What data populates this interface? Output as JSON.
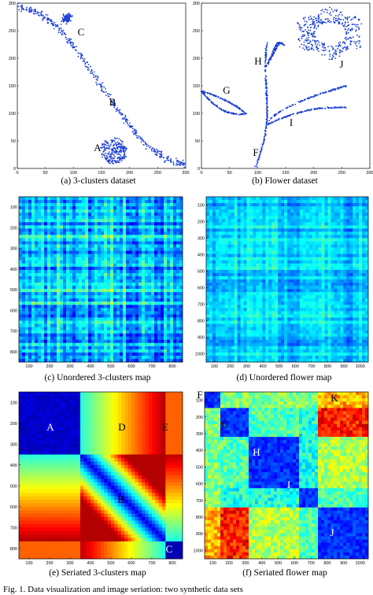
{
  "panels": {
    "a": {
      "caption": "(a) 3-clusters dataset",
      "xticks": [
        "0",
        "50",
        "100",
        "150",
        "200",
        "250",
        "300"
      ],
      "yticks": [
        "300",
        "250",
        "200",
        "150",
        "100",
        "50",
        "0"
      ],
      "labels": {
        "A": "A",
        "B": "B",
        "C": "C"
      }
    },
    "b": {
      "caption": "(b) Flower dataset",
      "xticks": [
        "0",
        "50",
        "100",
        "150",
        "200",
        "250",
        "300"
      ],
      "yticks": [
        "300",
        "250",
        "200",
        "150",
        "100",
        "50",
        "0"
      ],
      "labels": {
        "F": "F",
        "G": "G",
        "H": "H",
        "I": "I",
        "J": "J"
      }
    },
    "c": {
      "caption": "(c) Unordered 3-clusters map",
      "xticks": [
        "100",
        "200",
        "300",
        "400",
        "500",
        "600",
        "700",
        "800"
      ],
      "yticks": [
        "100",
        "200",
        "300",
        "400",
        "500",
        "600",
        "700",
        "800"
      ]
    },
    "d": {
      "caption": "(d) Unordered flower map",
      "xticks": [
        "100",
        "200",
        "300",
        "400",
        "500",
        "600",
        "700",
        "800",
        "900",
        "1000"
      ],
      "yticks": [
        "100",
        "200",
        "300",
        "400",
        "500",
        "600",
        "700",
        "800",
        "900",
        "1000"
      ]
    },
    "e": {
      "caption": "(e) Seriated 3-clusters map",
      "xticks": [
        "100",
        "200",
        "300",
        "400",
        "500",
        "600",
        "700",
        "800"
      ],
      "yticks": [
        "100",
        "200",
        "300",
        "400",
        "500",
        "600",
        "700",
        "800"
      ],
      "labels": {
        "A": "A",
        "B": "B",
        "C": "C",
        "D": "D",
        "E": "E"
      }
    },
    "f": {
      "caption": "(f) Seriated flower map",
      "xticks": [
        "100",
        "200",
        "300",
        "400",
        "500",
        "600",
        "700",
        "800",
        "900",
        "1000"
      ],
      "yticks": [
        "100",
        "200",
        "300",
        "400",
        "500",
        "600",
        "700",
        "800",
        "900",
        "1000"
      ],
      "labels": {
        "F": "F",
        "G": "G",
        "H": "H",
        "I": "I",
        "J": "J",
        "K": "K"
      }
    }
  },
  "figure_caption": "Fig. 1. Data visualization and image seriation: two synthetic data sets"
}
